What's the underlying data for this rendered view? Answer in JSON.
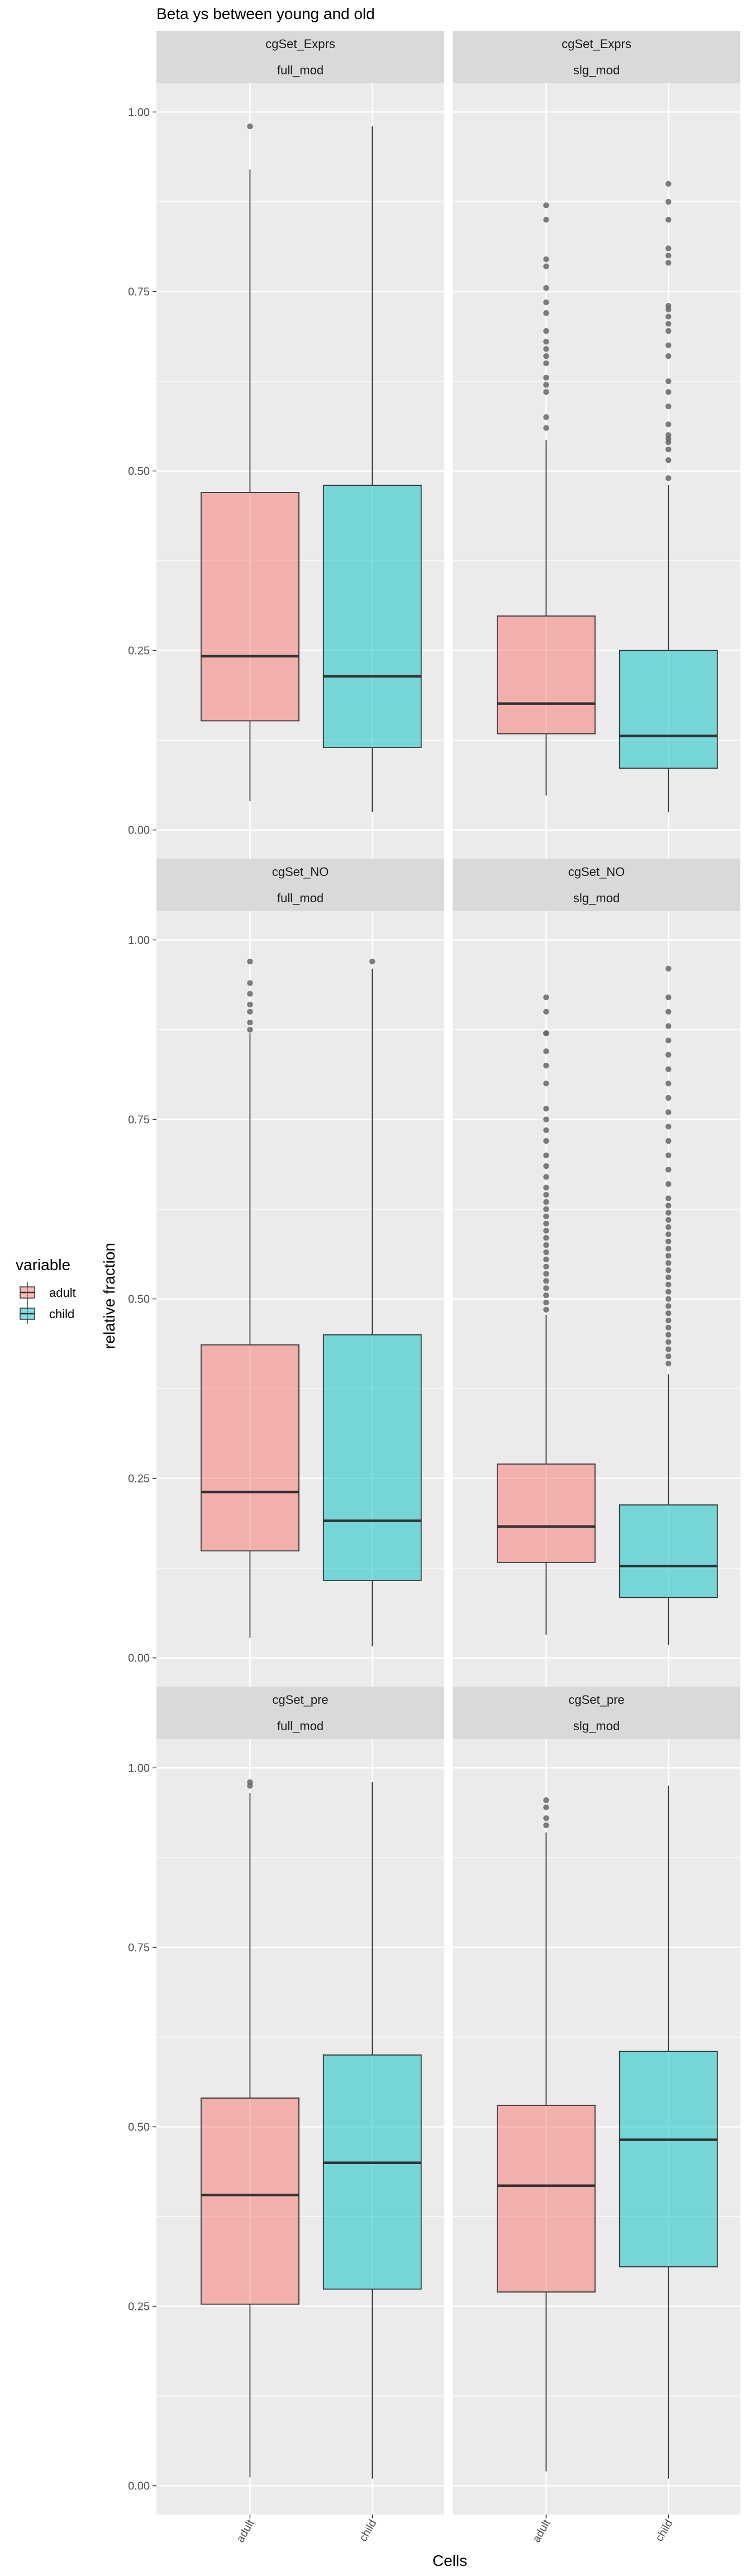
{
  "chart_data": {
    "type": "boxplot",
    "title": "Beta ys between young and old",
    "xlabel": "Cells",
    "ylabel": "relative fraction",
    "categories": [
      "adult",
      "child"
    ],
    "ylim": [
      -0.04,
      1.04
    ],
    "yticks": [
      0.0,
      0.25,
      0.5,
      0.75,
      1.0
    ],
    "ytick_labels": [
      "0.00",
      "0.25",
      "0.50",
      "0.75",
      "1.00"
    ],
    "facet_rows": [
      "cgSet_Exprs",
      "cgSet_NO",
      "cgSet_pre"
    ],
    "facet_cols": [
      "full_mod",
      "slg_mod"
    ],
    "legend": {
      "title": "variable",
      "position": "left",
      "entries": [
        {
          "label": "adult",
          "color": "#F8766D"
        },
        {
          "label": "child",
          "color": "#00BFC4"
        }
      ]
    },
    "colors": {
      "panel_bg": "#EBEBEB",
      "strip_bg": "#D9D9D9",
      "grid": "#FFFFFF",
      "adult": "#F8766D",
      "child": "#00BFC4",
      "box_line": "#333333",
      "outlier": "#666666"
    },
    "grid": true,
    "panels": [
      {
        "row_label": "cgSet_Exprs",
        "col_label": "full_mod",
        "boxes": [
          {
            "category": "adult",
            "min": 0.04,
            "q1": 0.152,
            "median": 0.242,
            "q3": 0.47,
            "max": 0.92,
            "outliers": [
              0.98
            ]
          },
          {
            "category": "child",
            "min": 0.025,
            "q1": 0.115,
            "median": 0.214,
            "q3": 0.48,
            "max": 0.98,
            "outliers": []
          }
        ]
      },
      {
        "row_label": "cgSet_Exprs",
        "col_label": "slg_mod",
        "boxes": [
          {
            "category": "adult",
            "min": 0.048,
            "q1": 0.134,
            "median": 0.176,
            "q3": 0.298,
            "max": 0.543,
            "outliers": [
              0.56,
              0.575,
              0.61,
              0.62,
              0.63,
              0.65,
              0.66,
              0.67,
              0.68,
              0.695,
              0.72,
              0.735,
              0.755,
              0.785,
              0.795,
              0.85,
              0.87
            ]
          },
          {
            "category": "child",
            "min": 0.025,
            "q1": 0.086,
            "median": 0.131,
            "q3": 0.25,
            "max": 0.48,
            "outliers": [
              0.49,
              0.515,
              0.53,
              0.54,
              0.545,
              0.55,
              0.565,
              0.59,
              0.61,
              0.625,
              0.66,
              0.675,
              0.695,
              0.705,
              0.715,
              0.725,
              0.73,
              0.79,
              0.8,
              0.81,
              0.85,
              0.875,
              0.9
            ]
          }
        ]
      },
      {
        "row_label": "cgSet_NO",
        "col_label": "full_mod",
        "boxes": [
          {
            "category": "adult",
            "min": 0.028,
            "q1": 0.149,
            "median": 0.231,
            "q3": 0.436,
            "max": 0.87,
            "outliers": [
              0.875,
              0.885,
              0.9,
              0.91,
              0.925,
              0.94,
              0.97
            ]
          },
          {
            "category": "child",
            "min": 0.016,
            "q1": 0.108,
            "median": 0.191,
            "q3": 0.45,
            "max": 0.96,
            "outliers": [
              0.97
            ]
          }
        ]
      },
      {
        "row_label": "cgSet_NO",
        "col_label": "slg_mod",
        "boxes": [
          {
            "category": "adult",
            "min": 0.032,
            "q1": 0.133,
            "median": 0.183,
            "q3": 0.27,
            "max": 0.478,
            "outliers": [
              0.485,
              0.495,
              0.505,
              0.515,
              0.525,
              0.535,
              0.545,
              0.555,
              0.565,
              0.575,
              0.585,
              0.595,
              0.605,
              0.615,
              0.625,
              0.635,
              0.645,
              0.655,
              0.67,
              0.685,
              0.7,
              0.72,
              0.735,
              0.75,
              0.765,
              0.8,
              0.825,
              0.845,
              0.87,
              0.87,
              0.9,
              0.92
            ]
          },
          {
            "category": "child",
            "min": 0.018,
            "q1": 0.084,
            "median": 0.128,
            "q3": 0.213,
            "max": 0.395,
            "outliers": [
              0.41,
              0.42,
              0.43,
              0.44,
              0.45,
              0.46,
              0.47,
              0.48,
              0.49,
              0.5,
              0.51,
              0.52,
              0.53,
              0.54,
              0.55,
              0.56,
              0.57,
              0.58,
              0.59,
              0.6,
              0.61,
              0.62,
              0.63,
              0.64,
              0.66,
              0.68,
              0.7,
              0.72,
              0.74,
              0.76,
              0.78,
              0.8,
              0.82,
              0.84,
              0.86,
              0.88,
              0.9,
              0.92,
              0.96
            ]
          }
        ]
      },
      {
        "row_label": "cgSet_pre",
        "col_label": "full_mod",
        "boxes": [
          {
            "category": "adult",
            "min": 0.012,
            "q1": 0.253,
            "median": 0.405,
            "q3": 0.54,
            "max": 0.965,
            "outliers": [
              0.975,
              0.98
            ]
          },
          {
            "category": "child",
            "min": 0.01,
            "q1": 0.274,
            "median": 0.45,
            "q3": 0.6,
            "max": 0.98,
            "outliers": []
          }
        ]
      },
      {
        "row_label": "cgSet_pre",
        "col_label": "slg_mod",
        "boxes": [
          {
            "category": "adult",
            "min": 0.02,
            "q1": 0.27,
            "median": 0.418,
            "q3": 0.53,
            "max": 0.91,
            "outliers": [
              0.92,
              0.93,
              0.945,
              0.955
            ]
          },
          {
            "category": "child",
            "min": 0.01,
            "q1": 0.305,
            "median": 0.482,
            "q3": 0.605,
            "max": 0.975,
            "outliers": []
          }
        ]
      }
    ]
  }
}
